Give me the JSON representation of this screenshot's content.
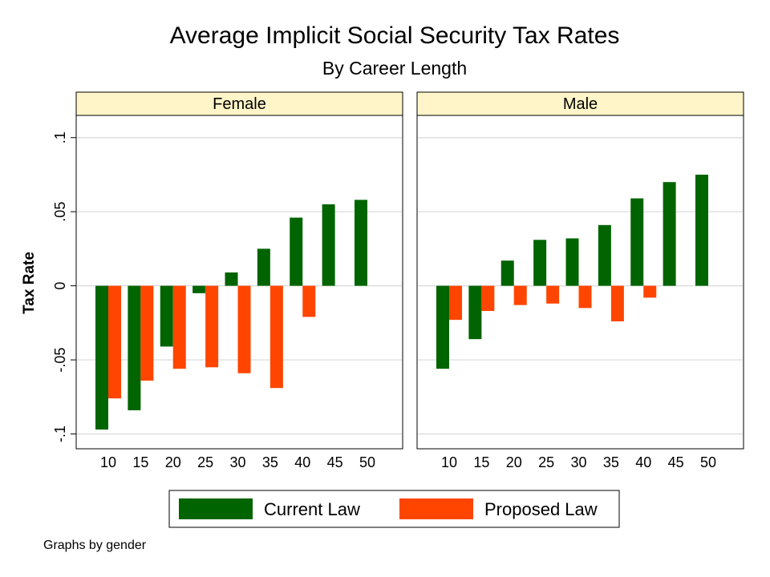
{
  "chart_data": {
    "type": "bar",
    "title": "Average Implicit Social Security Tax Rates",
    "subtitle": "By Career Length",
    "ylabel": "Tax Rate",
    "ylim": [
      -0.11,
      0.115
    ],
    "yticks": [
      {
        "value": -0.1,
        "label": "-.1"
      },
      {
        "value": -0.05,
        "label": "-.05"
      },
      {
        "value": 0,
        "label": "0"
      },
      {
        "value": 0.05,
        "label": ".05"
      },
      {
        "value": 0.1,
        "label": ".1"
      }
    ],
    "grid": true,
    "legend_position": "bottom",
    "note": "Graphs by gender",
    "colors": {
      "current": "#006400",
      "proposed": "#ff4500",
      "panel_header": "#fff5c8"
    },
    "panels": [
      {
        "label": "Female",
        "categories": [
          "10",
          "15",
          "20",
          "25",
          "30",
          "35",
          "40",
          "45",
          "50"
        ],
        "series": [
          {
            "name": "Current Law",
            "values": [
              -0.097,
              -0.084,
              -0.041,
              -0.005,
              0.009,
              0.025,
              0.046,
              0.055,
              0.058
            ]
          },
          {
            "name": "Proposed Law",
            "values": [
              -0.076,
              -0.064,
              -0.056,
              -0.055,
              -0.059,
              -0.069,
              -0.021,
              null,
              null
            ]
          }
        ]
      },
      {
        "label": "Male",
        "categories": [
          "10",
          "15",
          "20",
          "25",
          "30",
          "35",
          "40",
          "45",
          "50"
        ],
        "series": [
          {
            "name": "Current Law",
            "values": [
              -0.056,
              -0.036,
              0.017,
              0.031,
              0.032,
              0.041,
              0.059,
              0.07,
              0.075
            ]
          },
          {
            "name": "Proposed Law",
            "values": [
              -0.023,
              -0.017,
              -0.013,
              -0.012,
              -0.015,
              -0.024,
              -0.008,
              null,
              null
            ]
          }
        ]
      }
    ]
  }
}
